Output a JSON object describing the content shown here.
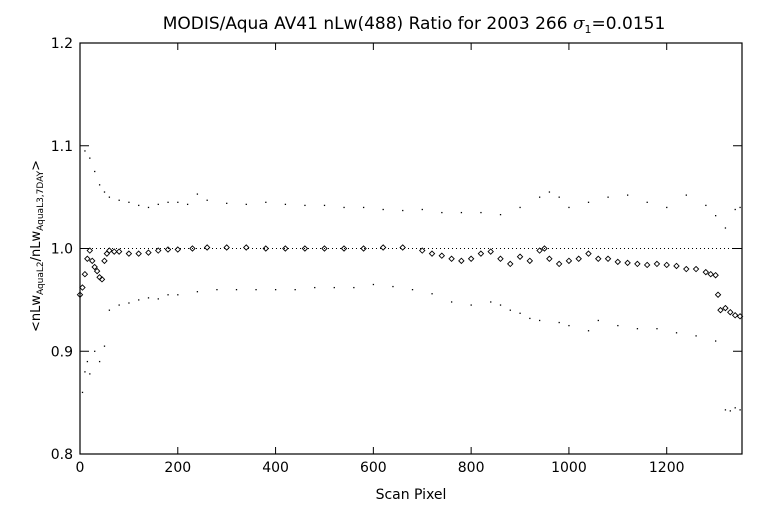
{
  "chart_data": {
    "type": "scatter",
    "title_main": "MODIS/Aqua AV41 nLw(488) Ratio for 2003 266 ",
    "title_sigma": "σ",
    "title_sigma_sub": "1",
    "title_sigma_value": "=0.0151",
    "xlabel": "Scan Pixel",
    "ylabel_parts": {
      "open": "<nLw",
      "sub1": "AquaL2",
      "mid": "/nLw",
      "sub2": "AquaL3,7DAY",
      "close": ">"
    },
    "xlim": [
      0,
      1354
    ],
    "ylim": [
      0.8,
      1.2
    ],
    "x_ticks": [
      0,
      200,
      400,
      600,
      800,
      1000,
      1200
    ],
    "x_tick_labels": [
      "0",
      "200",
      "400",
      "600",
      "800",
      "1000",
      "1200"
    ],
    "y_ticks": [
      0.8,
      0.9,
      1.0,
      1.1,
      1.2
    ],
    "y_tick_labels": [
      "0.8",
      "0.9",
      "1.0",
      "1.1",
      "1.2"
    ],
    "reference_line": 1.0,
    "grid": false,
    "series": [
      {
        "role": "mean ratio",
        "marker": "diamond",
        "x": [
          0,
          5,
          10,
          15,
          20,
          25,
          30,
          35,
          40,
          45,
          50,
          55,
          60,
          70,
          80,
          100,
          120,
          140,
          160,
          180,
          200,
          230,
          260,
          300,
          340,
          380,
          420,
          460,
          500,
          540,
          580,
          620,
          660,
          700,
          720,
          740,
          760,
          780,
          800,
          820,
          840,
          860,
          880,
          900,
          920,
          940,
          950,
          960,
          980,
          1000,
          1020,
          1040,
          1060,
          1080,
          1100,
          1120,
          1140,
          1160,
          1180,
          1200,
          1220,
          1240,
          1260,
          1280,
          1290,
          1300,
          1305,
          1310,
          1320,
          1330,
          1340,
          1350
        ],
        "y": [
          0.955,
          0.962,
          0.975,
          0.99,
          0.998,
          0.988,
          0.982,
          0.978,
          0.972,
          0.97,
          0.988,
          0.995,
          0.998,
          0.997,
          0.997,
          0.995,
          0.995,
          0.996,
          0.998,
          0.999,
          0.999,
          1.0,
          1.001,
          1.001,
          1.001,
          1.0,
          1.0,
          1.0,
          1.0,
          1.0,
          1.0,
          1.001,
          1.001,
          0.998,
          0.995,
          0.993,
          0.99,
          0.988,
          0.99,
          0.995,
          0.997,
          0.99,
          0.985,
          0.992,
          0.988,
          0.998,
          1.0,
          0.99,
          0.985,
          0.988,
          0.99,
          0.995,
          0.99,
          0.99,
          0.987,
          0.986,
          0.985,
          0.984,
          0.985,
          0.984,
          0.983,
          0.98,
          0.98,
          0.977,
          0.975,
          0.974,
          0.955,
          0.94,
          0.942,
          0.938,
          0.935,
          0.934
        ]
      },
      {
        "role": "upper bound",
        "marker": "dot",
        "x": [
          10,
          20,
          30,
          40,
          50,
          60,
          80,
          100,
          120,
          140,
          160,
          180,
          200,
          220,
          240,
          260,
          300,
          340,
          380,
          420,
          460,
          500,
          540,
          580,
          620,
          660,
          700,
          740,
          780,
          820,
          860,
          900,
          940,
          960,
          980,
          1000,
          1040,
          1080,
          1120,
          1160,
          1200,
          1240,
          1280,
          1300,
          1320,
          1340,
          1350
        ],
        "y": [
          1.095,
          1.088,
          1.075,
          1.062,
          1.055,
          1.05,
          1.047,
          1.045,
          1.042,
          1.04,
          1.043,
          1.045,
          1.045,
          1.043,
          1.053,
          1.047,
          1.044,
          1.043,
          1.045,
          1.043,
          1.042,
          1.042,
          1.04,
          1.04,
          1.038,
          1.037,
          1.038,
          1.035,
          1.035,
          1.035,
          1.033,
          1.04,
          1.05,
          1.055,
          1.05,
          1.04,
          1.045,
          1.05,
          1.052,
          1.045,
          1.04,
          1.052,
          1.042,
          1.032,
          1.02,
          1.038,
          1.04
        ]
      },
      {
        "role": "lower bound",
        "marker": "dot",
        "x": [
          5,
          10,
          15,
          20,
          30,
          40,
          50,
          60,
          80,
          100,
          120,
          140,
          160,
          180,
          200,
          240,
          280,
          320,
          360,
          400,
          440,
          480,
          520,
          560,
          600,
          640,
          680,
          720,
          760,
          800,
          840,
          860,
          880,
          900,
          920,
          940,
          980,
          1000,
          1040,
          1060,
          1100,
          1140,
          1180,
          1220,
          1260,
          1300,
          1320,
          1330,
          1340,
          1350
        ],
        "y": [
          0.86,
          0.88,
          0.89,
          0.878,
          0.9,
          0.89,
          0.905,
          0.94,
          0.945,
          0.947,
          0.95,
          0.952,
          0.951,
          0.955,
          0.955,
          0.958,
          0.96,
          0.96,
          0.96,
          0.96,
          0.96,
          0.962,
          0.962,
          0.962,
          0.965,
          0.963,
          0.96,
          0.956,
          0.948,
          0.945,
          0.948,
          0.945,
          0.94,
          0.937,
          0.932,
          0.93,
          0.928,
          0.925,
          0.92,
          0.93,
          0.925,
          0.922,
          0.922,
          0.918,
          0.915,
          0.91,
          0.843,
          0.842,
          0.845,
          0.843
        ]
      }
    ]
  }
}
